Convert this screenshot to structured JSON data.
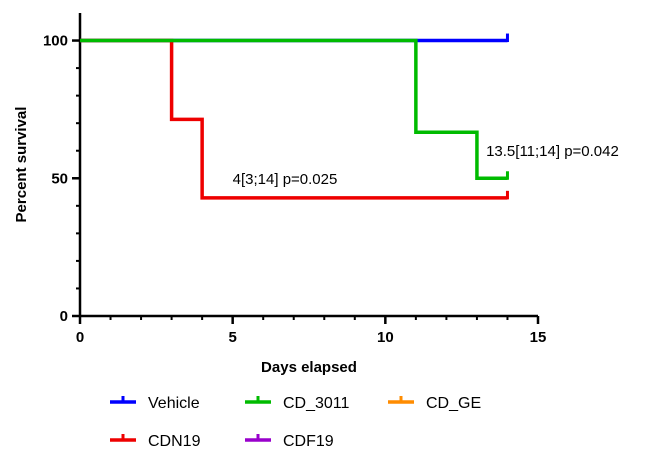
{
  "chart_data": {
    "type": "line",
    "subtype": "kaplan-meier survival step plot",
    "title": "",
    "xlabel": "Days elapsed",
    "ylabel": "Percent survival",
    "xlim": [
      0,
      15
    ],
    "ylim": [
      0,
      110
    ],
    "xticks": [
      0,
      5,
      10,
      15
    ],
    "yticks": [
      0,
      50,
      100
    ],
    "grid": false,
    "legend_position": "bottom",
    "series": [
      {
        "name": "Vehicle",
        "color": "#0000ff",
        "x": [
          0,
          14
        ],
        "y": [
          100,
          100
        ]
      },
      {
        "name": "CD_3011",
        "color": "#00bb00",
        "x": [
          0,
          11,
          13,
          14
        ],
        "y": [
          100,
          66.7,
          50,
          50
        ]
      },
      {
        "name": "CD_GE",
        "color": "#ff8c00",
        "x": [],
        "y": []
      },
      {
        "name": "CDN19",
        "color": "#ee0000",
        "x": [
          0,
          3,
          4,
          14
        ],
        "y": [
          100,
          71.4,
          42.9,
          42.9
        ]
      },
      {
        "name": "CDF19",
        "color": "#9900cc",
        "x": [],
        "y": []
      }
    ],
    "annotations": [
      {
        "text": "4[3;14] p=0.025",
        "x": 5.0,
        "y": 48
      },
      {
        "text": "13.5[11;14] p=0.042",
        "x": 13.3,
        "y": 58
      }
    ]
  }
}
